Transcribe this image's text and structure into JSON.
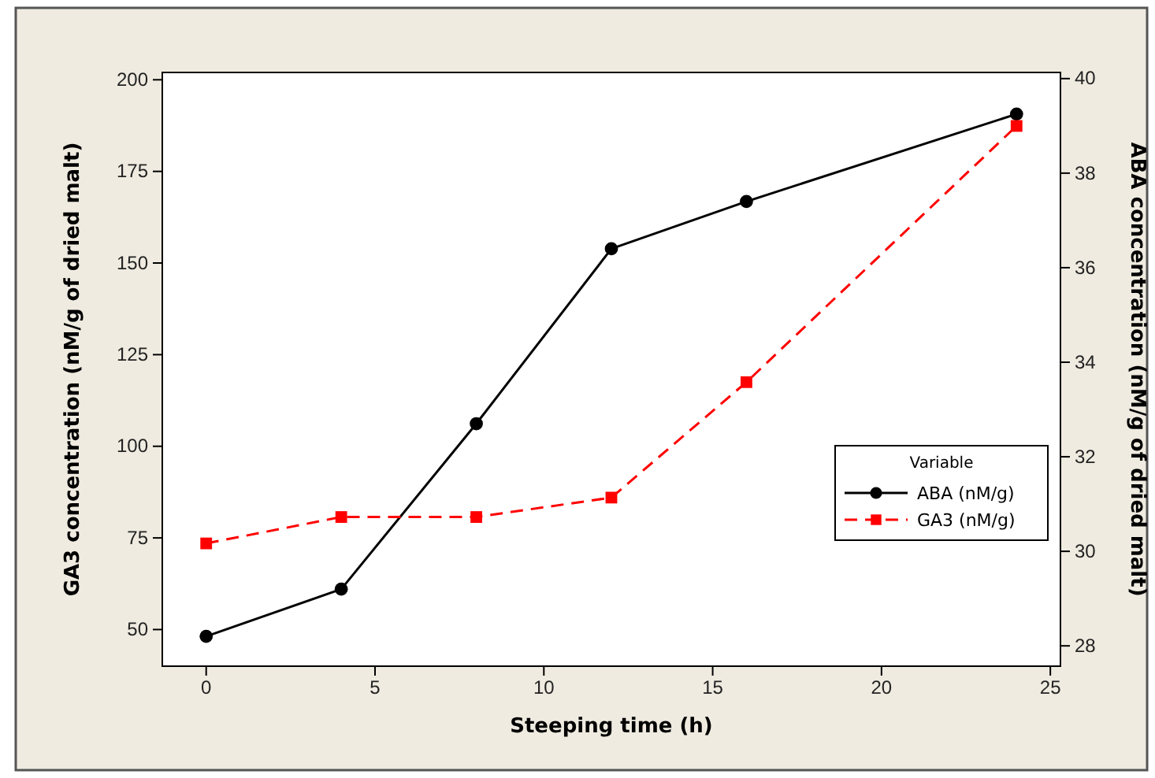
{
  "chart_data": {
    "type": "line",
    "xlabel": "Steeping time (h)",
    "ylabel": "GA3 concentration (nM/g of dried malt)",
    "y2label": "ABA concentration (nM/g of dried malt)",
    "legend_title": "Variable",
    "x": [
      0,
      4,
      8,
      12,
      16,
      24
    ],
    "series": [
      {
        "name": "ABA (nM/g)",
        "color": "#000000",
        "values": [
          28.2,
          29.2,
          32.7,
          36.4,
          37.4,
          39.25
        ],
        "axis": "y2",
        "marker": "circle",
        "line_style": "solid"
      },
      {
        "name": "GA3 (nM/g)",
        "color": "#ff0000",
        "values": [
          73.5,
          80.7,
          80.7,
          86,
          117.5,
          187.4
        ],
        "marker": "square",
        "line_style": "dashed"
      }
    ],
    "xlim": [
      -1.3,
      25.3
    ],
    "xticks": [
      0,
      5,
      10,
      15,
      20,
      25
    ],
    "ylim": [
      40,
      202
    ],
    "yticks": [
      50,
      75,
      100,
      125,
      150,
      175,
      200
    ],
    "y2lim": [
      27.57,
      40.13
    ],
    "y2ticks": [
      28,
      30,
      32,
      34,
      36,
      38,
      40
    ],
    "legend": "bottom right",
    "grid": false
  }
}
